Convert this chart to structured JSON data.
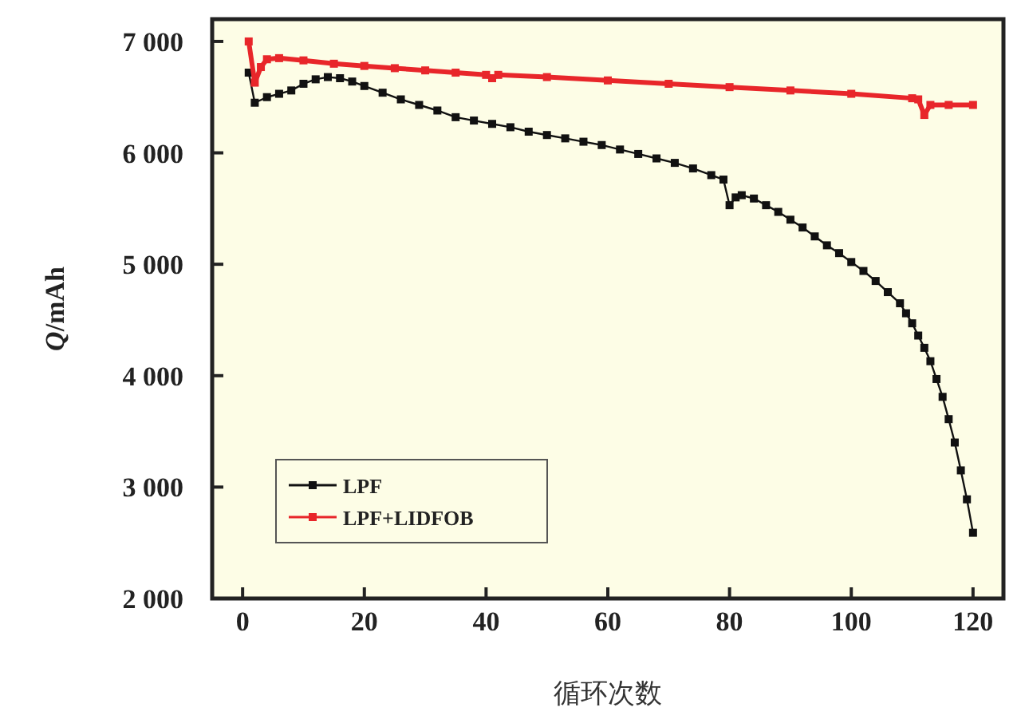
{
  "chart_data": {
    "type": "line",
    "xlabel": "循环次数",
    "ylabel": "Q/mAh",
    "xlim": [
      -5,
      125
    ],
    "xticks": [
      0,
      20,
      40,
      60,
      80,
      100,
      120
    ],
    "ylim": [
      2000,
      7200
    ],
    "yticks": [
      {
        "value": 2000,
        "label": "2 000"
      },
      {
        "value": 3000,
        "label": "3 000"
      },
      {
        "value": 4000,
        "label": "4 000"
      },
      {
        "value": 5000,
        "label": "5 000"
      },
      {
        "value": 6000,
        "label": "6 000"
      },
      {
        "value": 7000,
        "label": "7 000"
      }
    ],
    "grid": false,
    "legend": "bottom left",
    "marker": "square",
    "line_style": "solid",
    "series": [
      {
        "name": "LPF",
        "color": "#111111",
        "x": [
          1,
          2,
          4,
          6,
          8,
          10,
          12,
          14,
          16,
          18,
          20,
          23,
          26,
          29,
          32,
          35,
          38,
          41,
          44,
          47,
          50,
          53,
          56,
          59,
          62,
          65,
          68,
          71,
          74,
          77,
          79,
          80,
          81,
          82,
          84,
          86,
          88,
          90,
          92,
          94,
          96,
          98,
          100,
          102,
          104,
          106,
          108,
          109,
          110,
          111,
          112,
          113,
          114,
          115,
          116,
          117,
          118,
          119,
          120
        ],
        "values": [
          6720,
          6450,
          6500,
          6530,
          6560,
          6620,
          6660,
          6680,
          6670,
          6640,
          6600,
          6540,
          6480,
          6430,
          6380,
          6320,
          6290,
          6260,
          6230,
          6190,
          6160,
          6130,
          6100,
          6070,
          6030,
          5990,
          5950,
          5910,
          5860,
          5800,
          5760,
          5530,
          5600,
          5620,
          5590,
          5530,
          5470,
          5400,
          5330,
          5250,
          5170,
          5100,
          5020,
          4940,
          4850,
          4750,
          4650,
          4560,
          4470,
          4360,
          4250,
          4130,
          3970,
          3810,
          3610,
          3400,
          3150,
          2890,
          2590
        ]
      },
      {
        "name": "LPF+LIDFOB",
        "color": "#e8262a",
        "x": [
          1,
          2,
          3,
          4,
          6,
          10,
          15,
          20,
          25,
          30,
          35,
          40,
          41,
          42,
          50,
          60,
          70,
          80,
          90,
          100,
          110,
          111,
          112,
          113,
          116,
          120
        ],
        "values": [
          7000,
          6630,
          6770,
          6840,
          6850,
          6830,
          6800,
          6780,
          6760,
          6740,
          6720,
          6700,
          6670,
          6700,
          6680,
          6650,
          6620,
          6590,
          6560,
          6530,
          6490,
          6480,
          6340,
          6430,
          6430,
          6430
        ]
      }
    ]
  }
}
